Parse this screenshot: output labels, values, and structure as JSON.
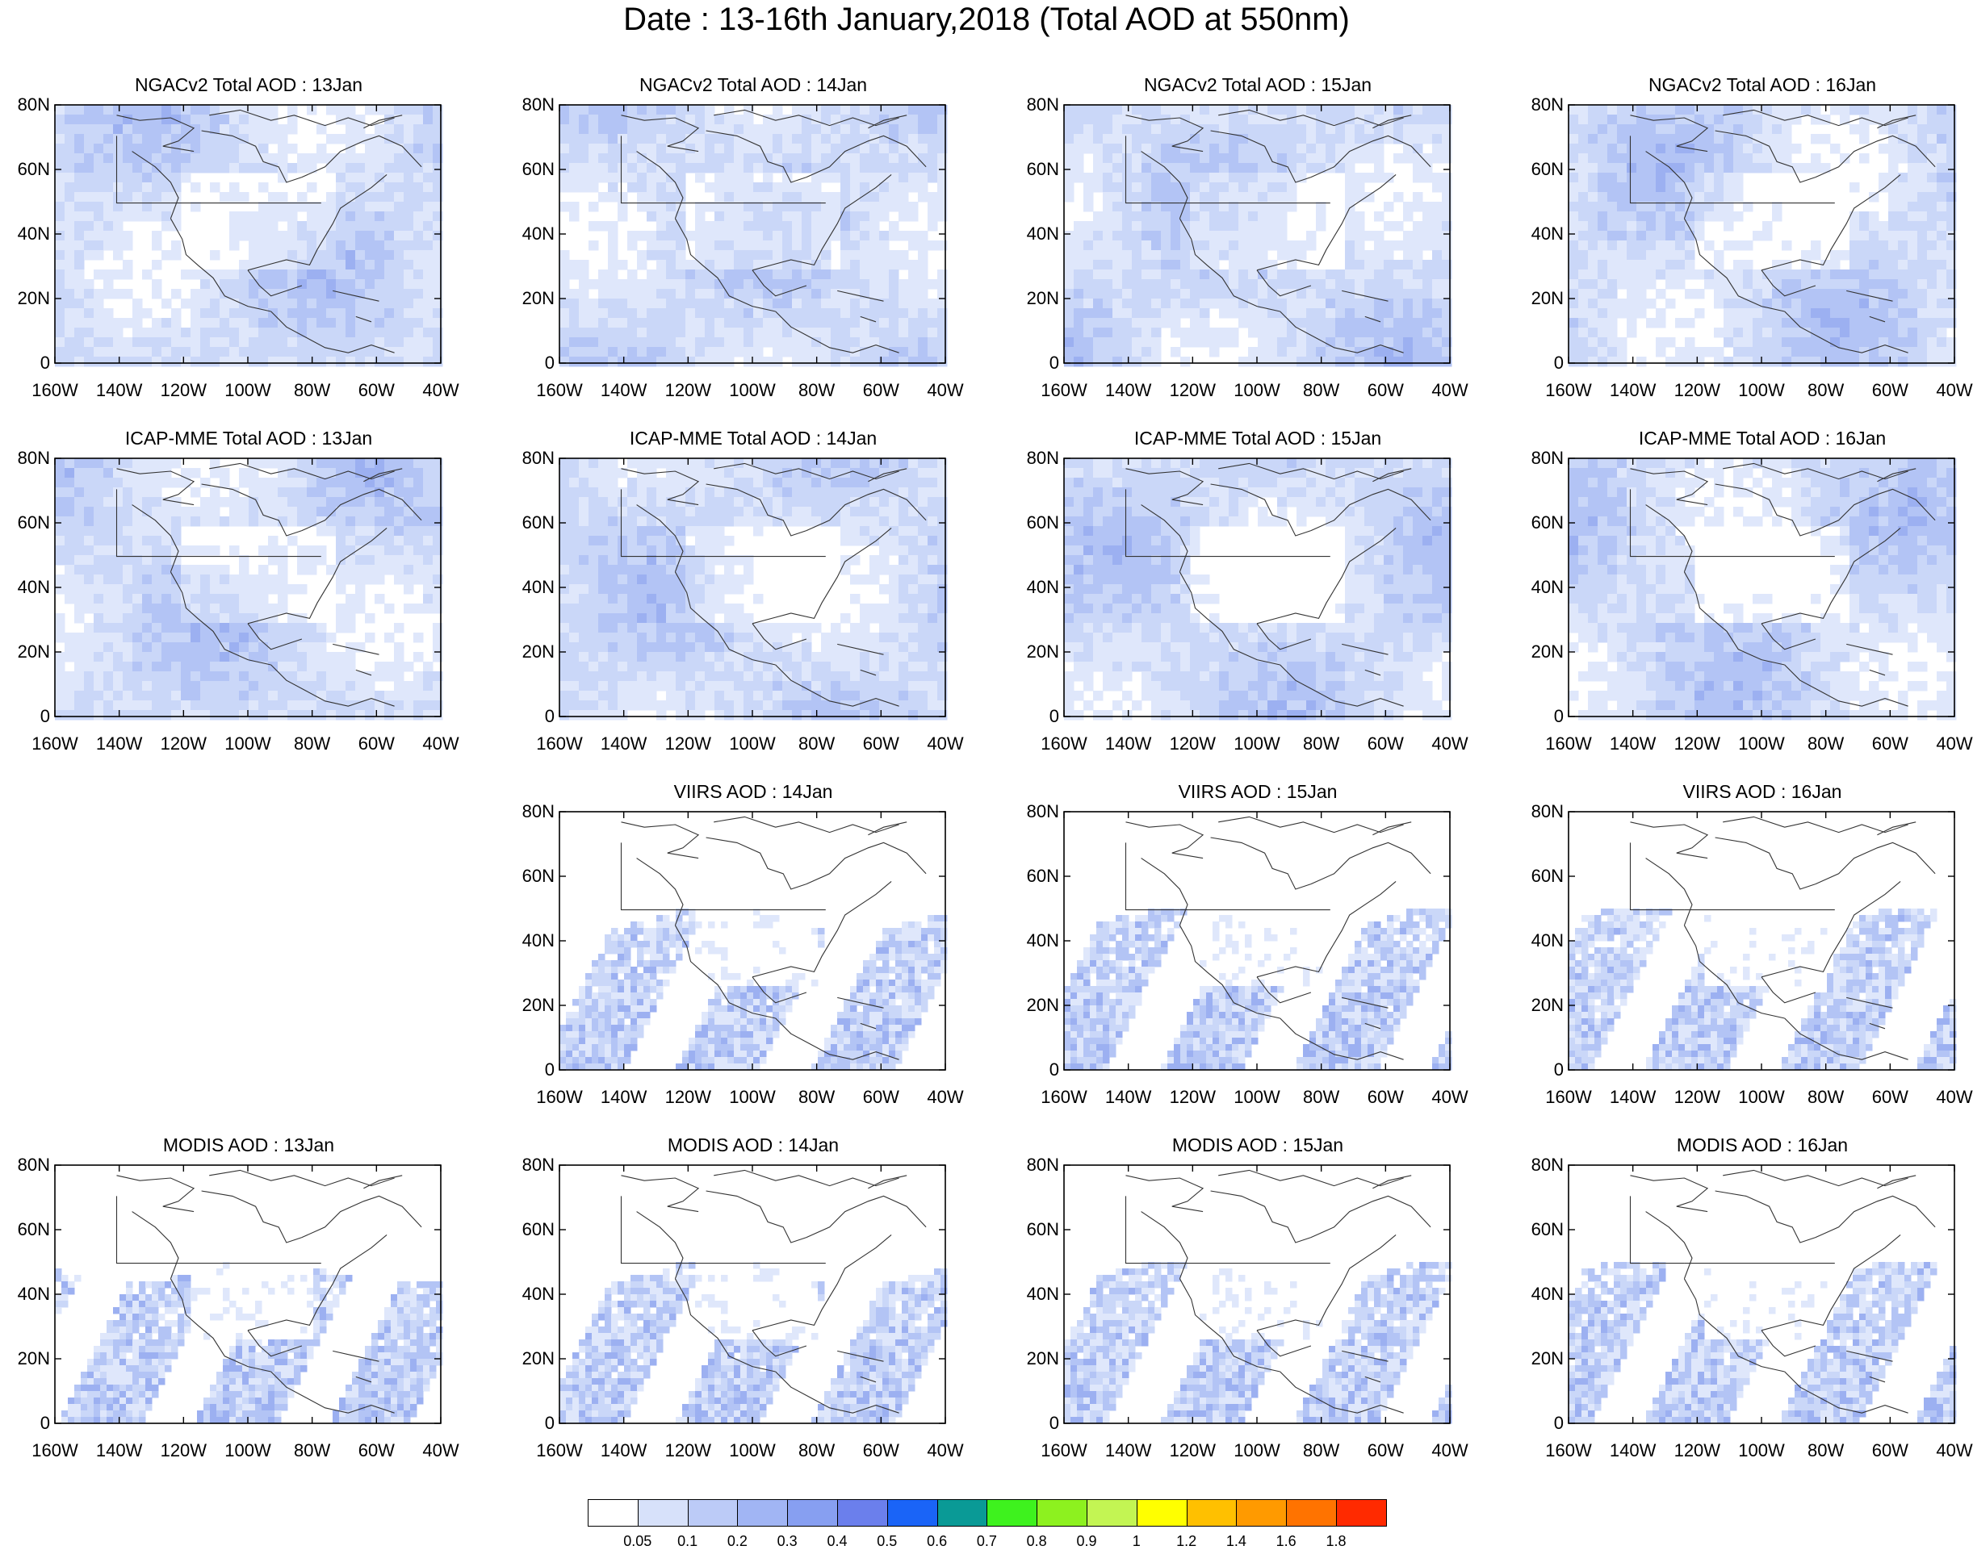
{
  "main_title": "Date : 13-16th January,2018 (Total AOD at 550nm)",
  "lat_labels": [
    "80N",
    "60N",
    "40N",
    "20N",
    "0"
  ],
  "lon_labels": [
    "160W",
    "140W",
    "120W",
    "100W",
    "80W",
    "60W",
    "40W"
  ],
  "rows": [
    {
      "product": "NGACv2",
      "panels": [
        {
          "title": "NGACv2 Total AOD : 13Jan",
          "pattern": "model"
        },
        {
          "title": "NGACv2 Total AOD : 14Jan",
          "pattern": "model"
        },
        {
          "title": "NGACv2 Total AOD : 15Jan",
          "pattern": "model"
        },
        {
          "title": "NGACv2 Total AOD : 16Jan",
          "pattern": "model"
        }
      ]
    },
    {
      "product": "ICAP-MME",
      "panels": [
        {
          "title": "ICAP-MME Total AOD : 13Jan",
          "pattern": "model"
        },
        {
          "title": "ICAP-MME Total AOD : 14Jan",
          "pattern": "model"
        },
        {
          "title": "ICAP-MME Total AOD : 15Jan",
          "pattern": "model"
        },
        {
          "title": "ICAP-MME Total AOD : 16Jan",
          "pattern": "model"
        }
      ]
    },
    {
      "product": "VIIRS",
      "panels": [
        null,
        {
          "title": "VIIRS AOD : 14Jan",
          "pattern": "satellite"
        },
        {
          "title": "VIIRS AOD : 15Jan",
          "pattern": "satellite"
        },
        {
          "title": "VIIRS AOD : 16Jan",
          "pattern": "satellite"
        }
      ]
    },
    {
      "product": "MODIS",
      "panels": [
        {
          "title": "MODIS AOD : 13Jan",
          "pattern": "satellite"
        },
        {
          "title": "MODIS AOD : 14Jan",
          "pattern": "satellite"
        },
        {
          "title": "MODIS AOD : 15Jan",
          "pattern": "satellite"
        },
        {
          "title": "MODIS AOD : 16Jan",
          "pattern": "satellite"
        }
      ]
    }
  ],
  "colorbar": {
    "labels": [
      "0.05",
      "0.1",
      "0.2",
      "0.3",
      "0.4",
      "0.5",
      "0.6",
      "0.7",
      "0.8",
      "0.9",
      "1",
      "1.2",
      "1.4",
      "1.6",
      "1.8"
    ],
    "colors": [
      "#ffffff",
      "#d7e1fa",
      "#bccbf7",
      "#a1b5f4",
      "#879ff1",
      "#6b7fec",
      "#1a64f7",
      "#0a9a96",
      "#3ef21e",
      "#8df11f",
      "#c3f553",
      "#ffff00",
      "#ffc000",
      "#ff9a00",
      "#ff7300",
      "#ff2a00"
    ]
  }
}
